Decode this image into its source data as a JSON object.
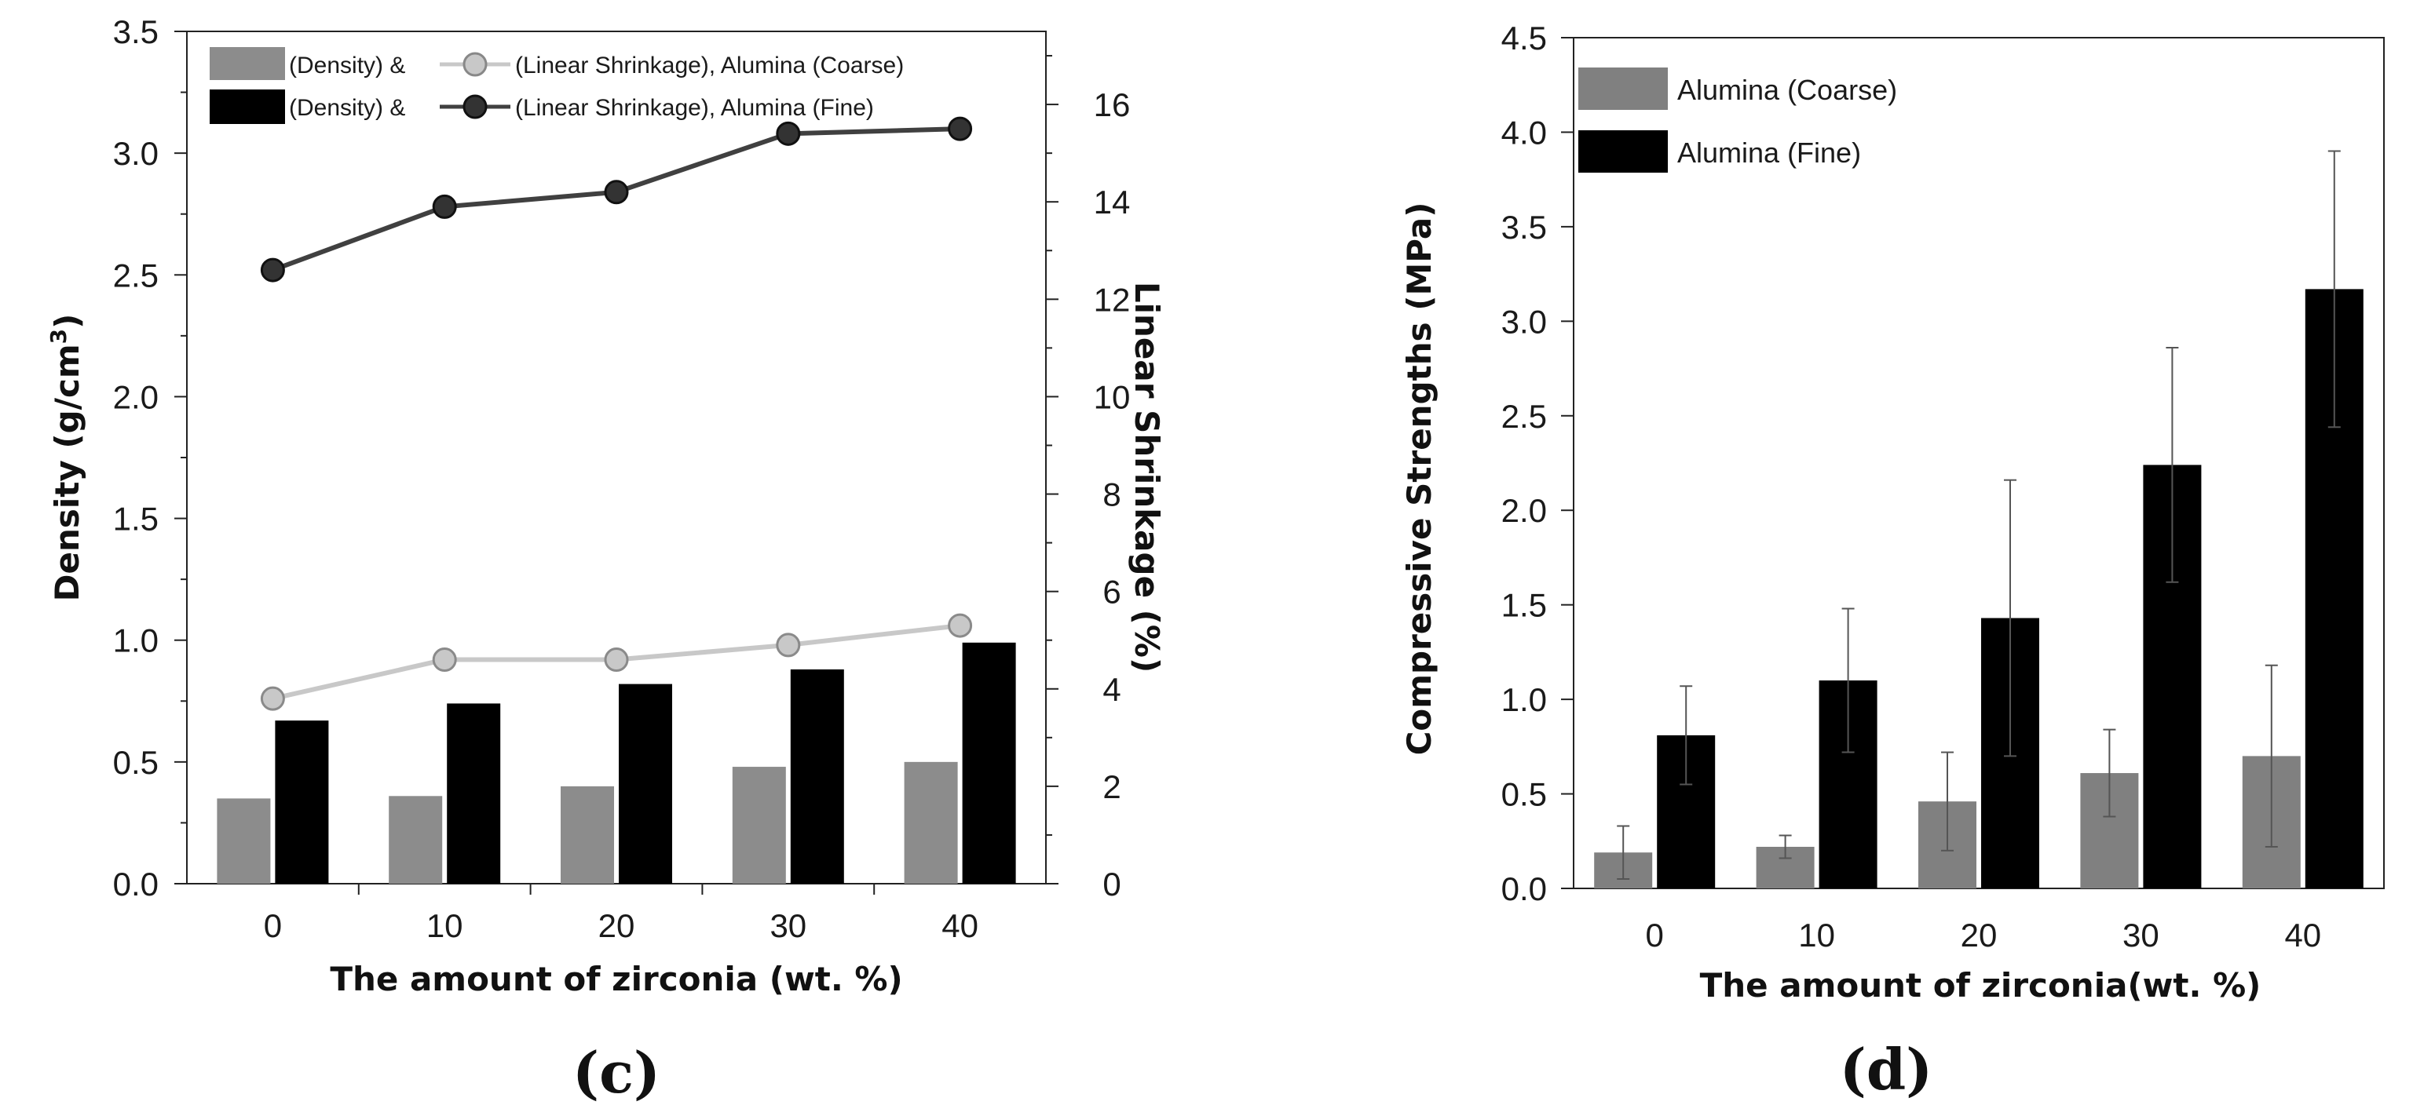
{
  "chart_data": [
    {
      "panel": "(c)",
      "type": "bar",
      "categories": [
        "0",
        "10",
        "20",
        "30",
        "40"
      ],
      "xlabel": "The amount of zirconia (wt. %)",
      "ylabel": "Density (g/cm",
      "ylabel_sup": "3",
      "ylabel_close": ")",
      "ylim": [
        0,
        3.5
      ],
      "yticks": [
        "0.0",
        "0.5",
        "1.0",
        "1.5",
        "2.0",
        "2.5",
        "3.0",
        "3.5"
      ],
      "y2label": "Linear Shrinkage (%)",
      "y2lim": [
        0,
        17.5
      ],
      "y2ticks": [
        "0",
        "2",
        "4",
        "6",
        "8",
        "10",
        "12",
        "14",
        "16"
      ],
      "series": [
        {
          "name": "Density, Alumina (Coarse)",
          "kind": "bar",
          "axis": "left",
          "color": "#8c8c8c",
          "values": [
            0.35,
            0.36,
            0.4,
            0.48,
            0.5
          ]
        },
        {
          "name": "Density, Alumina (Fine)",
          "kind": "bar",
          "axis": "left",
          "color": "#000000",
          "values": [
            0.67,
            0.74,
            0.82,
            0.88,
            0.99
          ]
        },
        {
          "name": "Linear Shrinkage, Alumina (Coarse)",
          "kind": "line",
          "axis": "right",
          "color": "#c8c8c8",
          "marker": "#c8c8c8",
          "values": [
            3.8,
            4.6,
            4.6,
            4.9,
            5.3
          ]
        },
        {
          "name": "Linear Shrinkage, Alumina (Fine)",
          "kind": "line",
          "axis": "right",
          "color": "#404040",
          "marker": "#333333",
          "values": [
            12.6,
            13.9,
            14.2,
            15.4,
            15.5
          ]
        }
      ],
      "legend": [
        {
          "bar_label": "(Density) &",
          "line_label": "(Linear Shrinkage), Alumina (Coarse)",
          "bar_color": "#8c8c8c",
          "line_color": "#c8c8c8",
          "marker_color": "#c8c8c8"
        },
        {
          "bar_label": "(Density) &",
          "line_label": "(Linear Shrinkage), Alumina (Fine)",
          "bar_color": "#000000",
          "line_color": "#404040",
          "marker_color": "#333333"
        }
      ],
      "legend_position": "top-left"
    },
    {
      "panel": "(d)",
      "type": "bar",
      "categories": [
        "0",
        "10",
        "20",
        "30",
        "40"
      ],
      "xlabel": "The amount of zirconia(wt. %)",
      "ylabel": "Compressive Strengths (MPa)",
      "ylim": [
        0,
        4.5
      ],
      "yticks": [
        "0.0",
        "0.5",
        "1.0",
        "1.5",
        "2.0",
        "2.5",
        "3.0",
        "3.5",
        "4.0",
        "4.5"
      ],
      "series": [
        {
          "name": "Alumina (Coarse)",
          "color": "#808080",
          "values": [
            0.19,
            0.22,
            0.46,
            0.61,
            0.7
          ],
          "errors": [
            0.14,
            0.06,
            0.26,
            0.23,
            0.48
          ]
        },
        {
          "name": "Alumina (Fine)",
          "color": "#000000",
          "values": [
            0.81,
            1.1,
            1.43,
            2.24,
            3.17
          ],
          "errors": [
            0.26,
            0.38,
            0.73,
            0.62,
            0.73
          ]
        }
      ],
      "legend_position": "top-left"
    }
  ]
}
